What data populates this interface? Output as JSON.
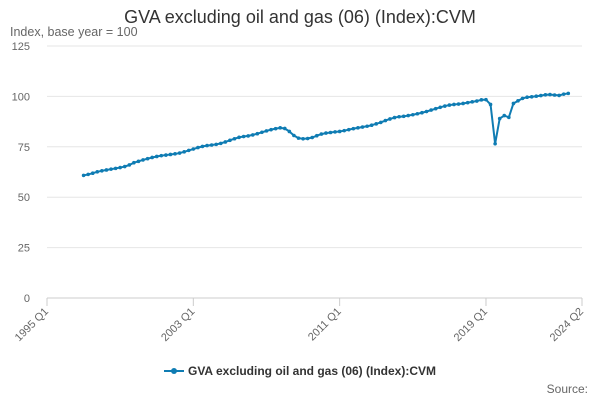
{
  "chart_data": {
    "type": "line",
    "title": "GVA excluding oil and gas (06) (Index):CVM",
    "subtitle": "Index, base year = 100",
    "xlabel": "",
    "ylabel": "",
    "ylim": [
      0,
      125
    ],
    "y_ticks": [
      0,
      25,
      50,
      75,
      100,
      125
    ],
    "x_tick_labels": [
      "1995 Q1",
      "2003 Q1",
      "2011 Q1",
      "2019 Q1",
      "2024 Q2"
    ],
    "grid": true,
    "legend_position": "bottom",
    "source_label": "Source:",
    "color": "#0f7cb3",
    "x_start": "1995 Q1",
    "x_end": "2024 Q2",
    "series": [
      {
        "name": "GVA excluding oil and gas (06) (Index):CVM",
        "x_start": "1997 Q1",
        "values": [
          60.8,
          61.3,
          61.9,
          62.6,
          63.1,
          63.5,
          63.9,
          64.3,
          64.7,
          65.2,
          66.0,
          67.1,
          67.8,
          68.5,
          69.1,
          69.7,
          70.2,
          70.6,
          70.9,
          71.2,
          71.5,
          71.9,
          72.5,
          73.2,
          73.9,
          74.6,
          75.2,
          75.6,
          75.9,
          76.2,
          76.7,
          77.4,
          78.2,
          79.0,
          79.7,
          80.1,
          80.4,
          80.9,
          81.5,
          82.2,
          82.9,
          83.5,
          84.0,
          84.4,
          84.1,
          82.6,
          80.6,
          79.3,
          79.0,
          79.1,
          79.6,
          80.5,
          81.3,
          81.8,
          82.1,
          82.4,
          82.6,
          83.0,
          83.5,
          84.0,
          84.4,
          84.8,
          85.2,
          85.7,
          86.4,
          87.1,
          88.0,
          88.8,
          89.5,
          89.9,
          90.1,
          90.5,
          90.9,
          91.4,
          91.9,
          92.5,
          93.2,
          93.9,
          94.6,
          95.2,
          95.7,
          96.0,
          96.2,
          96.5,
          96.9,
          97.3,
          97.7,
          98.3,
          98.4,
          96.0,
          76.5,
          89.0,
          90.5,
          89.6,
          96.5,
          97.8,
          99.0,
          99.6,
          99.8,
          100.1,
          100.4,
          100.8,
          100.9,
          100.7,
          100.5,
          101.1,
          101.5
        ]
      }
    ]
  }
}
